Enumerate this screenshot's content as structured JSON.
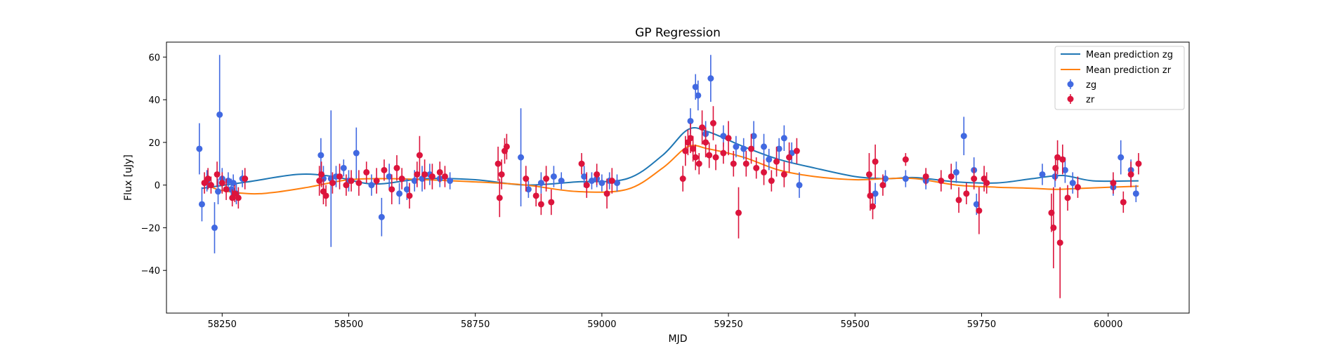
{
  "chart_data": {
    "type": "scatter",
    "title": "GP Regression",
    "xlabel": "MJD",
    "ylabel": "Flux [uJy]",
    "xlim": [
      58140,
      60160
    ],
    "ylim": [
      -60,
      67
    ],
    "xticks": [
      58250,
      58500,
      58750,
      59000,
      59250,
      59500,
      59750,
      60000
    ],
    "yticks": [
      -40,
      -20,
      0,
      20,
      40,
      60
    ],
    "grid": false,
    "legend_position": "top-right",
    "legend": [
      "Mean prediction zg",
      "Mean prediction zr",
      "zg",
      "zr"
    ],
    "colors": {
      "mean_zg": "#1f77b4",
      "mean_zr": "#ff7f0e",
      "zg": "#4169e1",
      "zr": "#dc143c"
    },
    "series": [
      {
        "name": "Mean prediction zg",
        "kind": "line",
        "x": [
          58210,
          58300,
          58400,
          58470,
          58550,
          58650,
          58750,
          58850,
          58950,
          59050,
          59120,
          59170,
          59210,
          59280,
          59350,
          59420,
          59500,
          59560,
          59620,
          59700,
          59780,
          59850,
          59910,
          59970,
          60060
        ],
        "y": [
          -1.5,
          1.5,
          5,
          4,
          0.5,
          3,
          2.5,
          0,
          1.5,
          3,
          14,
          26,
          25,
          18,
          12,
          8,
          4,
          3,
          3.5,
          1.5,
          1,
          3,
          4.5,
          2,
          2
        ]
      },
      {
        "name": "Mean prediction zr",
        "kind": "line",
        "x": [
          58210,
          58240,
          58300,
          58350,
          58420,
          58500,
          58580,
          58650,
          58750,
          58850,
          58950,
          59050,
          59120,
          59170,
          59210,
          59280,
          59350,
          59420,
          59500,
          59560,
          59620,
          59700,
          59780,
          59850,
          59900,
          59950,
          60060
        ],
        "y": [
          2,
          -2,
          -4,
          -3.5,
          -1,
          2.5,
          3,
          2.5,
          1.5,
          0,
          -3,
          -2,
          8,
          18,
          17,
          13,
          7,
          4,
          2.5,
          3,
          3,
          0,
          -1,
          -1.5,
          -2,
          -1.5,
          -0.5
        ]
      },
      {
        "name": "zg",
        "kind": "errorbar",
        "x": [
          58205,
          58210,
          58220,
          58235,
          58242,
          58245,
          58250,
          58262,
          58268,
          58272,
          58278,
          58290,
          58445,
          58450,
          58465,
          58475,
          58490,
          58500,
          58515,
          58545,
          58565,
          58580,
          58600,
          58615,
          58630,
          58645,
          58660,
          58680,
          58700,
          58840,
          58855,
          58880,
          58905,
          58920,
          58965,
          58980,
          58990,
          59000,
          59015,
          59030,
          59175,
          59185,
          59190,
          59205,
          59215,
          59240,
          59265,
          59280,
          59300,
          59320,
          59330,
          59350,
          59360,
          59375,
          59390,
          59540,
          59560,
          59600,
          59640,
          59700,
          59715,
          59735,
          59740,
          59870,
          59895,
          59915,
          59930,
          60010,
          60025,
          60045,
          60055
        ],
        "y": [
          17,
          -9,
          2,
          -20,
          -3,
          33,
          3,
          2,
          -2,
          1,
          -4,
          3,
          14,
          3,
          3,
          4,
          8,
          2,
          15,
          0,
          -15,
          4,
          -4,
          -2,
          2,
          3,
          5,
          3,
          2,
          13,
          -2,
          1,
          4,
          2,
          4,
          2,
          3,
          1,
          2,
          1,
          30,
          46,
          42,
          24,
          50,
          23,
          18,
          17,
          23,
          18,
          12,
          17,
          22,
          15,
          0,
          -4,
          3,
          3,
          2,
          6,
          23,
          7,
          -9,
          5,
          4,
          7,
          1,
          -1,
          13,
          7,
          -4
        ],
        "yerr": [
          12,
          8,
          5,
          12,
          6,
          28,
          5,
          4,
          5,
          4,
          5,
          4,
          8,
          6,
          32,
          5,
          4,
          5,
          12,
          5,
          9,
          6,
          5,
          5,
          5,
          6,
          5,
          4,
          4,
          23,
          4,
          5,
          5,
          4,
          5,
          4,
          4,
          4,
          4,
          4,
          6,
          6,
          7,
          6,
          11,
          5,
          5,
          5,
          7,
          6,
          5,
          5,
          6,
          5,
          6,
          5,
          4,
          4,
          4,
          5,
          9,
          6,
          5,
          5,
          5,
          6,
          5,
          4,
          8,
          5,
          4
        ]
      },
      {
        "name": "zr",
        "kind": "errorbar",
        "x": [
          58215,
          58222,
          58228,
          58240,
          58250,
          58258,
          58270,
          58275,
          58282,
          58295,
          58442,
          58446,
          58450,
          58455,
          58468,
          58482,
          58495,
          58505,
          58520,
          58535,
          58555,
          58570,
          58585,
          58595,
          58605,
          58620,
          58635,
          58640,
          58650,
          58665,
          58680,
          58690,
          58795,
          58798,
          58802,
          58808,
          58812,
          58850,
          58870,
          58880,
          58890,
          58900,
          58960,
          58970,
          58990,
          59010,
          59020,
          59160,
          59165,
          59170,
          59175,
          59180,
          59185,
          59192,
          59198,
          59205,
          59212,
          59220,
          59225,
          59240,
          59250,
          59260,
          59270,
          59285,
          59295,
          59305,
          59320,
          59335,
          59345,
          59360,
          59370,
          59385,
          59528,
          59530,
          59535,
          59540,
          59555,
          59600,
          59640,
          59670,
          59690,
          59705,
          59720,
          59735,
          59745,
          59755,
          59760,
          59888,
          59892,
          59896,
          59900,
          59905,
          59910,
          59920,
          59940,
          60010,
          60030,
          60045,
          60060
        ],
        "y": [
          1,
          3,
          0,
          5,
          1,
          -2,
          -6,
          -4,
          -6,
          3,
          2,
          5,
          -3,
          -5,
          1,
          4,
          0,
          2,
          1,
          6,
          2,
          7,
          -2,
          8,
          3,
          -5,
          5,
          14,
          5,
          4,
          6,
          4,
          10,
          -6,
          5,
          16,
          18,
          3,
          -5,
          -9,
          3,
          -8,
          10,
          0,
          5,
          -4,
          2,
          3,
          16,
          20,
          22,
          17,
          13,
          10,
          27,
          20,
          14,
          29,
          13,
          15,
          22,
          10,
          -13,
          10,
          17,
          8,
          6,
          2,
          11,
          5,
          13,
          16,
          5,
          -5,
          -10,
          11,
          0,
          12,
          4,
          2,
          4,
          -7,
          -4,
          3,
          -12,
          3,
          1,
          -13,
          -20,
          8,
          13,
          -27,
          12,
          -6,
          -1,
          1,
          -8,
          5,
          10
        ],
        "yerr": [
          5,
          5,
          4,
          6,
          5,
          5,
          4,
          4,
          5,
          5,
          7,
          6,
          6,
          5,
          5,
          6,
          5,
          5,
          6,
          5,
          6,
          5,
          7,
          6,
          5,
          6,
          6,
          9,
          7,
          6,
          5,
          5,
          8,
          9,
          7,
          6,
          6,
          6,
          5,
          5,
          6,
          6,
          5,
          6,
          5,
          7,
          6,
          6,
          7,
          6,
          7,
          6,
          6,
          5,
          8,
          7,
          6,
          8,
          6,
          5,
          8,
          6,
          12,
          6,
          7,
          5,
          6,
          5,
          7,
          6,
          7,
          6,
          10,
          7,
          6,
          8,
          5,
          3,
          4,
          5,
          6,
          6,
          5,
          5,
          11,
          6,
          5,
          9,
          19,
          6,
          8,
          26,
          7,
          6,
          5,
          5,
          5,
          6,
          5
        ]
      }
    ]
  }
}
